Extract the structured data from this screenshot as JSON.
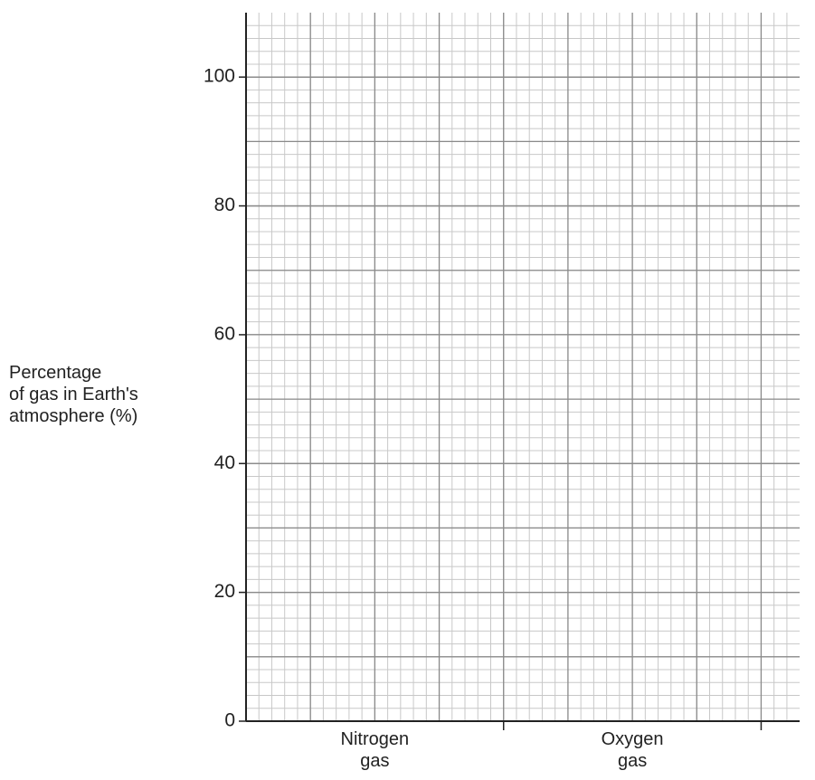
{
  "chart_data": {
    "type": "bar",
    "ylabel": "Percentage\nof gas in Earth's\natmosphere (%)",
    "categories": [
      "Nitrogen\ngas",
      "Oxygen\ngas"
    ],
    "ylim": [
      0,
      110
    ],
    "yticks": [
      0,
      20,
      40,
      60,
      80,
      100
    ],
    "grid": true
  }
}
